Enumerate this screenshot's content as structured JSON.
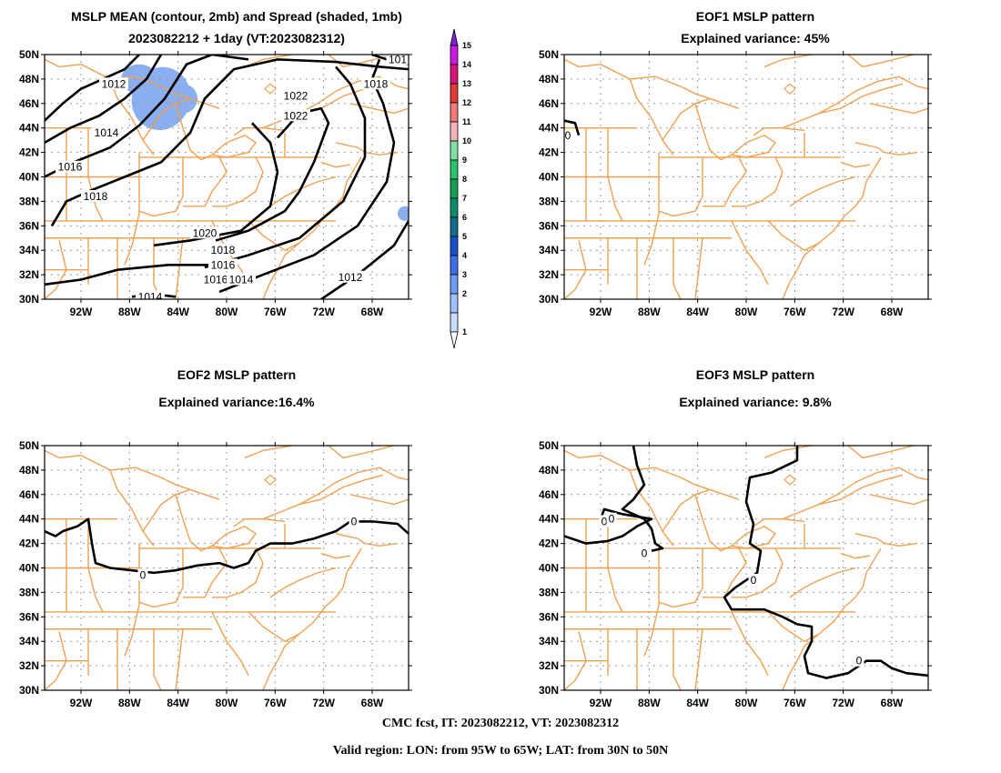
{
  "panels": {
    "mean": {
      "title_line1": "MSLP MEAN (contour, 2mb) and Spread (shaded, 1mb)",
      "title_line2": "2023082212 + 1day (VT:2023082312)"
    },
    "eof1": {
      "title_line1": "EOF1 MSLP pattern",
      "title_line2": "Explained variance: 45%"
    },
    "eof2": {
      "title_line1": "EOF2 MSLP pattern",
      "title_line2": "Explained variance:16.4%"
    },
    "eof3": {
      "title_line1": "EOF3 MSLP pattern",
      "title_line2": "Explained variance: 9.8%"
    }
  },
  "axes": {
    "lat_labels": [
      "50N",
      "48N",
      "46N",
      "44N",
      "42N",
      "40N",
      "38N",
      "36N",
      "34N",
      "32N",
      "30N"
    ],
    "lon_labels": [
      "92W",
      "88W",
      "84W",
      "80W",
      "76W",
      "72W",
      "68W"
    ]
  },
  "mean_contour_labels": [
    "1012",
    "1014",
    "1016",
    "1018",
    "1020",
    "1022",
    "1022",
    "1016",
    "1018",
    "1018",
    "1016",
    "1014",
    "1012",
    "1014",
    "101"
  ],
  "eof_zero_label": "0",
  "colorbar": {
    "labels": [
      "1",
      "2",
      "3",
      "4",
      "5",
      "6",
      "7",
      "8",
      "9",
      "10",
      "11",
      "12",
      "13",
      "14",
      "15"
    ],
    "colors": [
      "#c8dcff",
      "#a0c0ff",
      "#6f9cf2",
      "#3e6fe6",
      "#1a4fd0",
      "#166f8a",
      "#0e8a6e",
      "#139c54",
      "#2bc46e",
      "#7ee0a4",
      "#f2b4b4",
      "#f07a7a",
      "#e23a3a",
      "#d8167a",
      "#c81ae0",
      "#7a24d2"
    ]
  },
  "colors": {
    "coast": "#f0a050",
    "contour": "#000000",
    "spread": "#8aaef0"
  },
  "footer": {
    "line1": "CMC fcst, IT: 2023082212, VT: 2023082312",
    "line2": "Valid region: LON: from 95W to 65W; LAT: from 30N to 50N"
  }
}
